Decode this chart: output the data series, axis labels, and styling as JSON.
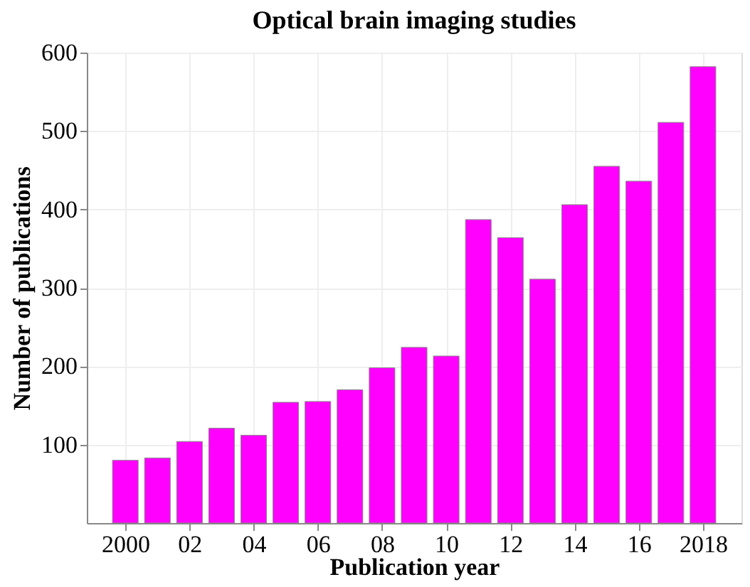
{
  "chart_data": {
    "type": "bar",
    "title": "Optical brain imaging studies",
    "xlabel": "Publication year",
    "ylabel": "Number of publications",
    "x": [
      2000,
      2001,
      2002,
      2003,
      2004,
      2005,
      2006,
      2007,
      2008,
      2009,
      2010,
      2011,
      2012,
      2013,
      2014,
      2015,
      2016,
      2017,
      2018
    ],
    "series": [
      {
        "color": "#ff00ff",
        "values": [
          80,
          83,
          104,
          121,
          112,
          154,
          155,
          170,
          198,
          224,
          213,
          387,
          364,
          311,
          406,
          455,
          436,
          511,
          582
        ]
      }
    ],
    "xlim": [
      1998.8,
      2019.2
    ],
    "xticks": [
      {
        "value": 2000,
        "label": "2000"
      },
      {
        "value": 2002,
        "label": "02"
      },
      {
        "value": 2004,
        "label": "04"
      },
      {
        "value": 2006,
        "label": "06"
      },
      {
        "value": 2008,
        "label": "08"
      },
      {
        "value": 2010,
        "label": "10"
      },
      {
        "value": 2012,
        "label": "12"
      },
      {
        "value": 2014,
        "label": "14"
      },
      {
        "value": 2016,
        "label": "16"
      },
      {
        "value": 2018,
        "label": "2018"
      }
    ],
    "ylim": [
      0,
      600
    ],
    "yticks": [
      100,
      200,
      300,
      400,
      500,
      600
    ],
    "grid": true
  }
}
